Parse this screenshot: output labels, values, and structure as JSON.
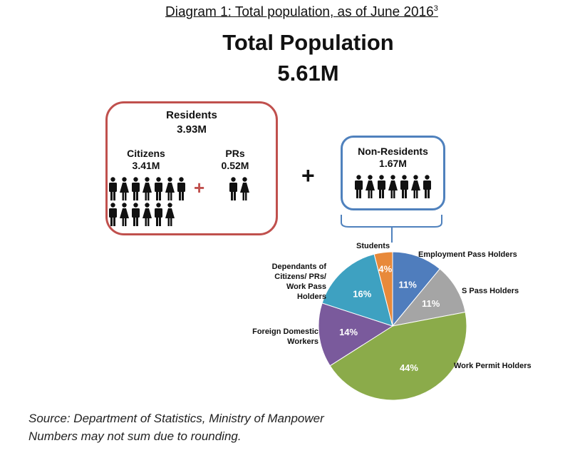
{
  "caption": {
    "text": "Diagram 1: Total population, as of June 2016",
    "footnote": "3"
  },
  "title": "Total Population",
  "total": "5.61M",
  "residents": {
    "label": "Residents",
    "value": "3.93M",
    "citizens": {
      "label": "Citizens",
      "value": "3.41M"
    },
    "prs": {
      "label": "PRs",
      "value": "0.52M"
    },
    "plus": "+"
  },
  "plus": "+",
  "non_residents": {
    "label": "Non-Residents",
    "value": "1.67M"
  },
  "colors": {
    "residents_border": "#c0504d",
    "non_residents_border": "#4f81bd",
    "plus_red": "#c0504d"
  },
  "chart_data": {
    "type": "pie",
    "start": "top",
    "direction": "clockwise",
    "slices": [
      {
        "label": "Employment Pass Holders",
        "value": 11,
        "text": "11%",
        "color": "#4f7dbd"
      },
      {
        "label": "S Pass Holders",
        "value": 11,
        "text": "11%",
        "color": "#a5a5a5"
      },
      {
        "label": "Work Permit Holders",
        "value": 44,
        "text": "44%",
        "color": "#8bab4a"
      },
      {
        "label": "Foreign Domestic Workers",
        "value": 14,
        "text": "14%",
        "color": "#7a5a9c"
      },
      {
        "label": "Dependants of Citizens/ PRs/ Work Pass Holders",
        "value": 16,
        "text": "16%",
        "color": "#3ea1c1"
      },
      {
        "label": "Students",
        "value": 4,
        "text": "4%",
        "color": "#e8893a"
      }
    ]
  },
  "source": {
    "line1": "Source: Department of Statistics, Ministry of Manpower",
    "line2": "Numbers may not sum due to rounding."
  }
}
